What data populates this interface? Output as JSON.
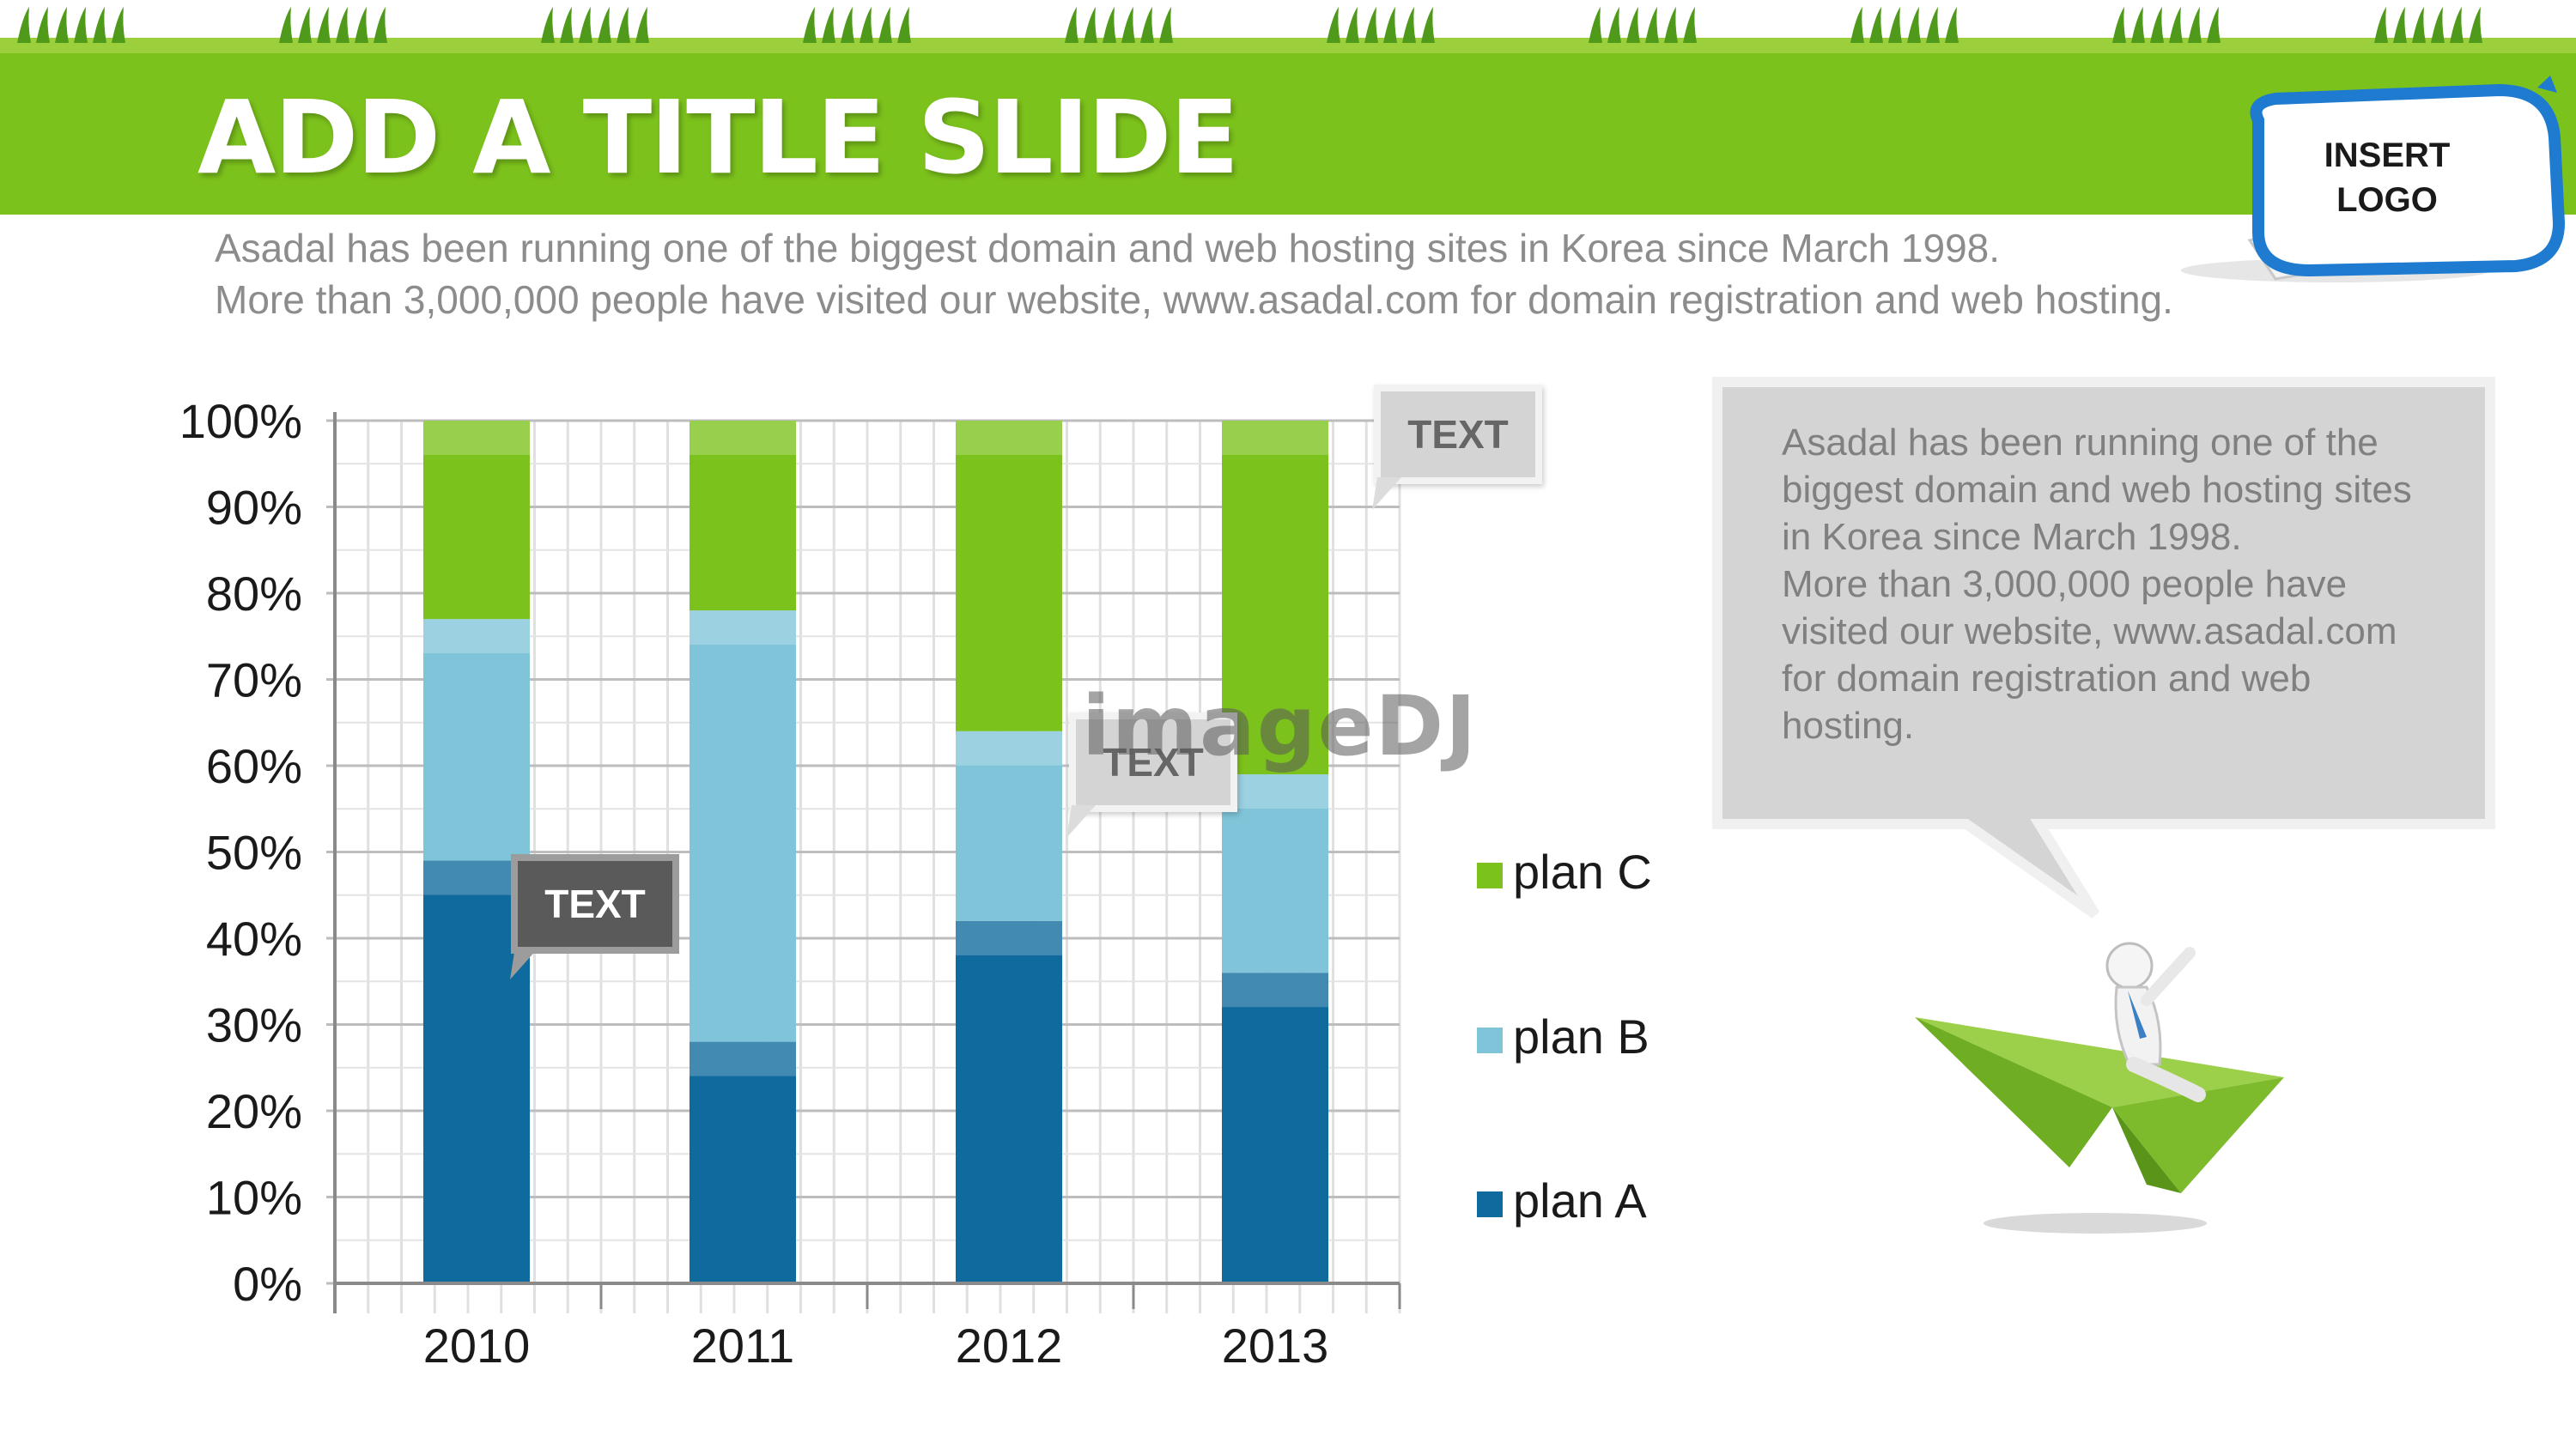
{
  "slide": {
    "title": "ADD A TITLE SLIDE",
    "subtitle_lines": [
      "Asadal has been running one of the biggest domain and web hosting sites in Korea since March 1998.",
      "More than 3,000,000 people have visited our website,  www.asadal.com for domain registration and web hosting."
    ],
    "logo_lines": [
      "INSERT",
      "LOGO"
    ],
    "callouts": [
      "TEXT",
      "TEXT",
      "TEXT"
    ],
    "watermark": "imageDJ",
    "speech_lines": [
      "Asadal has been running one of the",
      "biggest domain and web hosting sites",
      "in Korea since March 1998.",
      "More than 3,000,000 people have",
      "visited our website,  www.asadal.com",
      "for domain registration and web",
      "hosting."
    ]
  },
  "colors": {
    "banner": "#7cc21c",
    "plan_a": "#0f6a9e",
    "plan_b": "#7fc4d8",
    "plan_c": "#7cc21c",
    "grid": "#c8c8c8"
  },
  "chart_data": {
    "type": "bar",
    "stacked": true,
    "percent": true,
    "categories": [
      "2010",
      "2011",
      "2012",
      "2013"
    ],
    "series": [
      {
        "name": "plan A",
        "values": [
          49,
          28,
          42,
          36
        ]
      },
      {
        "name": "plan B",
        "values": [
          28,
          50,
          22,
          23
        ]
      },
      {
        "name": "plan C",
        "values": [
          23,
          22,
          36,
          41
        ]
      }
    ],
    "ylim": [
      0,
      100
    ],
    "yticks": [
      "0%",
      "10%",
      "20%",
      "30%",
      "40%",
      "50%",
      "60%",
      "70%",
      "80%",
      "90%",
      "100%"
    ],
    "grid": true,
    "legend": "right",
    "legend_order": [
      "plan C",
      "plan B",
      "plan A"
    ]
  }
}
